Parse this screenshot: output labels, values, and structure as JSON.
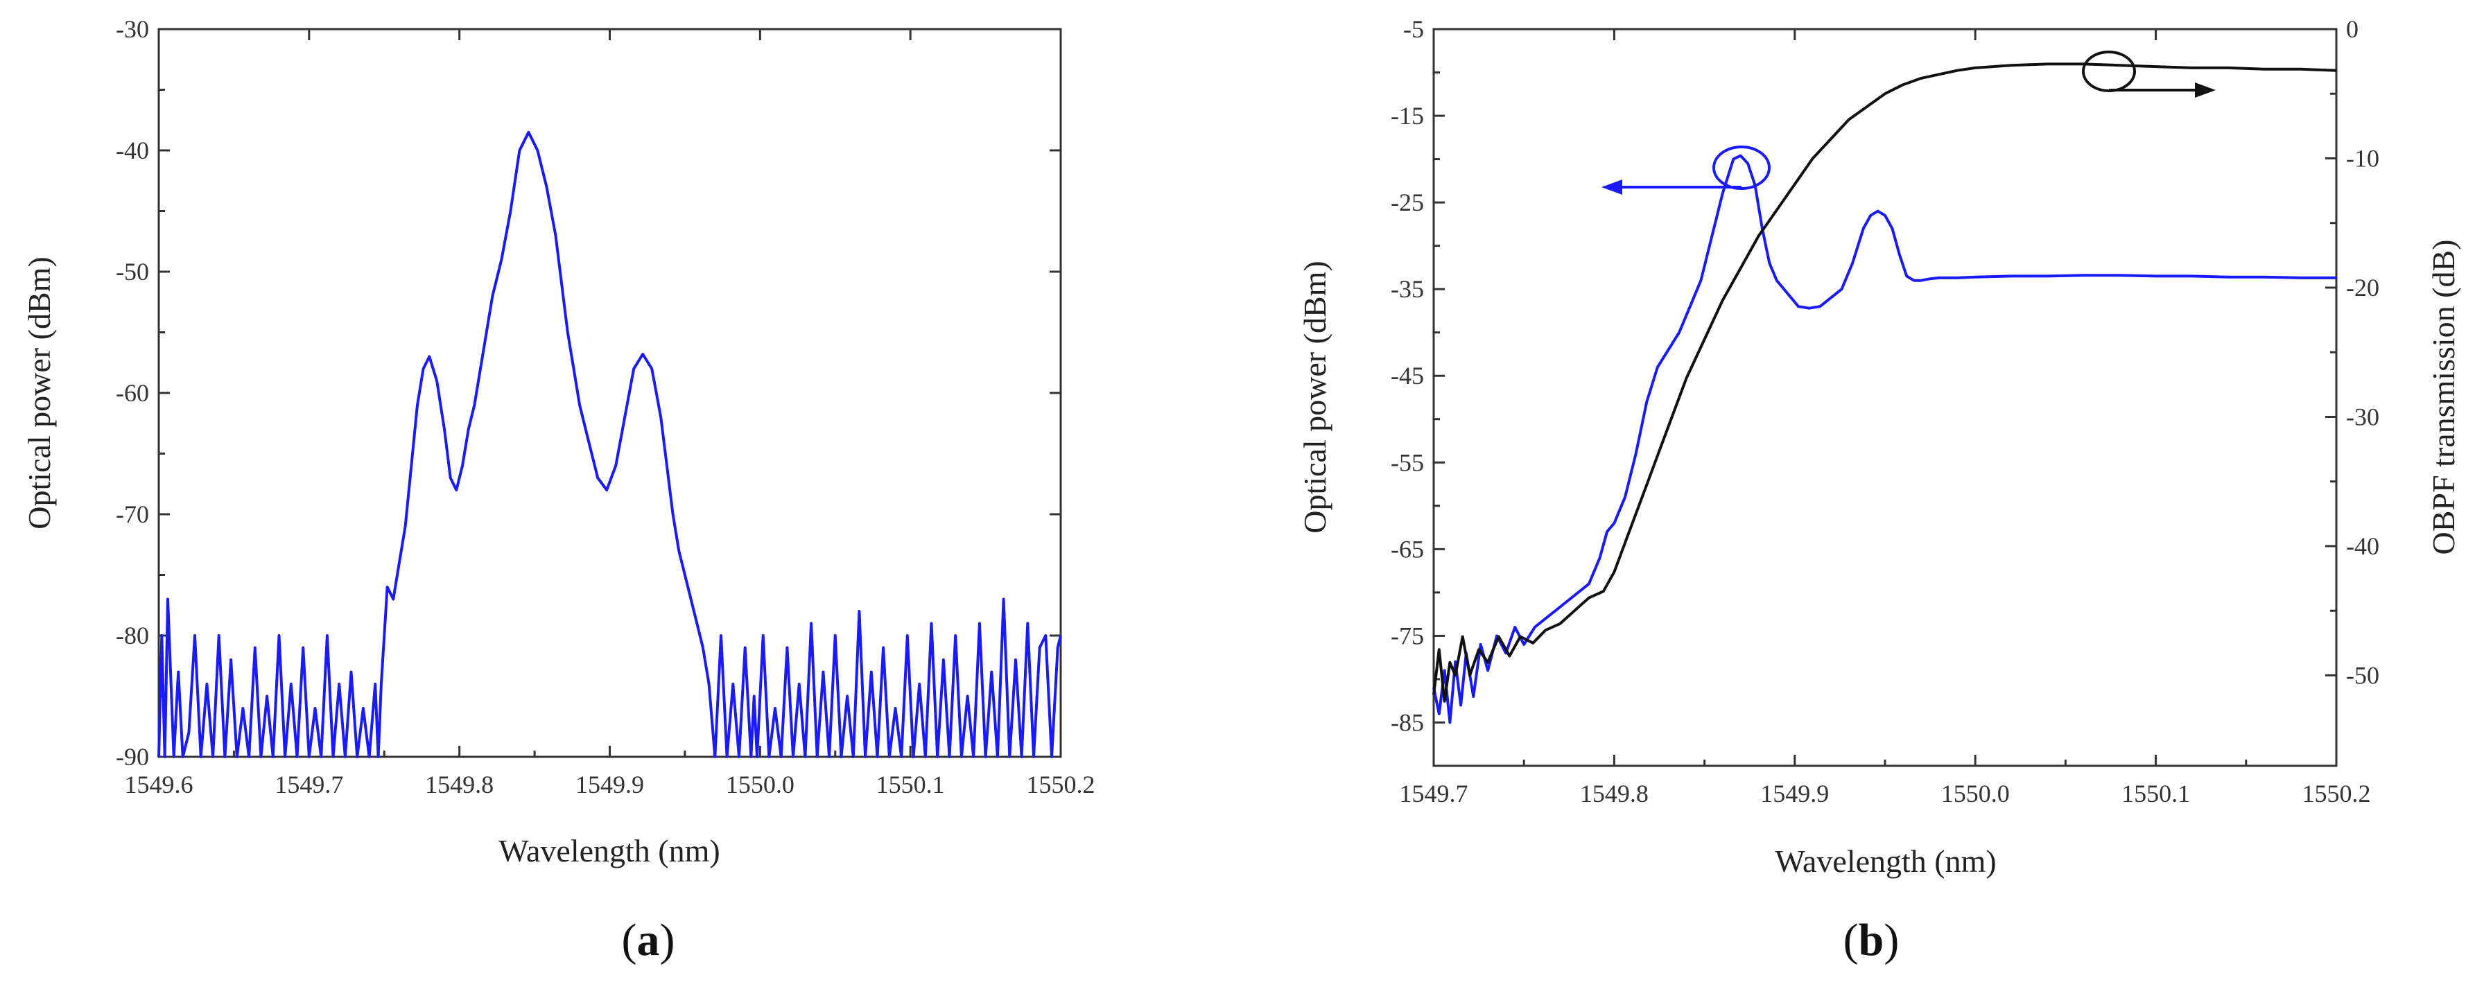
{
  "colors": {
    "blue_trace": "#1a1aff",
    "black_trace": "#111111",
    "axis": "#333333"
  },
  "panels": [
    {
      "label_open": "(",
      "label_letter": "a",
      "label_close": ")"
    },
    {
      "label_open": "(",
      "label_letter": "b",
      "label_close": ")"
    }
  ],
  "chart_data": [
    {
      "type": "line",
      "title": "",
      "xlabel": "Wavelength (nm)",
      "ylabel": "Optical power (dBm)",
      "xlim": [
        1549.6,
        1550.2
      ],
      "ylim": [
        -90,
        -30
      ],
      "x_ticks": [
        1549.6,
        1549.7,
        1549.8,
        1549.9,
        1550.0,
        1550.1,
        1550.2
      ],
      "x_tick_labels": [
        "1549.6",
        "1549.7",
        "1549.8",
        "1549.9",
        "1550.0",
        "1550.1",
        "1550.2"
      ],
      "y_ticks": [
        -90,
        -80,
        -70,
        -60,
        -50,
        -40,
        -30
      ],
      "y_tick_labels": [
        "-90",
        "-80",
        "-70",
        "-60",
        "-50",
        "-40",
        "-30"
      ],
      "grid": false,
      "series": [
        {
          "color": "#1a1aff",
          "x": [
            1549.6,
            1549.602,
            1549.604,
            1549.606,
            1549.61,
            1549.613,
            1549.616,
            1549.62,
            1549.624,
            1549.628,
            1549.632,
            1549.636,
            1549.64,
            1549.644,
            1549.648,
            1549.652,
            1549.656,
            1549.66,
            1549.664,
            1549.668,
            1549.672,
            1549.676,
            1549.68,
            1549.684,
            1549.688,
            1549.692,
            1549.696,
            1549.7,
            1549.704,
            1549.708,
            1549.712,
            1549.716,
            1549.72,
            1549.724,
            1549.728,
            1549.732,
            1549.736,
            1549.74,
            1549.744,
            1549.746,
            1549.748,
            1549.752,
            1549.756,
            1549.76,
            1549.764,
            1549.768,
            1549.772,
            1549.776,
            1549.78,
            1549.785,
            1549.79,
            1549.794,
            1549.798,
            1549.802,
            1549.806,
            1549.81,
            1549.814,
            1549.818,
            1549.822,
            1549.828,
            1549.834,
            1549.84,
            1549.846,
            1549.852,
            1549.858,
            1549.864,
            1549.868,
            1549.872,
            1549.876,
            1549.88,
            1549.886,
            1549.892,
            1549.898,
            1549.904,
            1549.91,
            1549.916,
            1549.922,
            1549.928,
            1549.934,
            1549.938,
            1549.942,
            1549.946,
            1549.95,
            1549.954,
            1549.958,
            1549.962,
            1549.966,
            1549.97,
            1549.974,
            1549.978,
            1549.982,
            1549.986,
            1549.99,
            1549.994,
            1549.996,
            1549.998,
            1550.002,
            1550.006,
            1550.01,
            1550.014,
            1550.018,
            1550.022,
            1550.026,
            1550.03,
            1550.034,
            1550.038,
            1550.042,
            1550.046,
            1550.05,
            1550.054,
            1550.058,
            1550.062,
            1550.066,
            1550.07,
            1550.074,
            1550.078,
            1550.082,
            1550.086,
            1550.09,
            1550.094,
            1550.098,
            1550.102,
            1550.106,
            1550.11,
            1550.114,
            1550.118,
            1550.122,
            1550.126,
            1550.13,
            1550.134,
            1550.138,
            1550.142,
            1550.146,
            1550.15,
            1550.154,
            1550.158,
            1550.162,
            1550.166,
            1550.17,
            1550.174,
            1550.178,
            1550.182,
            1550.186,
            1550.19,
            1550.194,
            1550.198,
            1550.2
          ],
          "y": [
            -90,
            -80,
            -90,
            -77,
            -90,
            -83,
            -90,
            -88,
            -80,
            -90,
            -84,
            -90,
            -80,
            -90,
            -82,
            -90,
            -86,
            -90,
            -81,
            -90,
            -85,
            -90,
            -80,
            -90,
            -84,
            -90,
            -81,
            -90,
            -86,
            -90,
            -80,
            -90,
            -84,
            -90,
            -83,
            -90,
            -86,
            -90,
            -84,
            -90,
            -84,
            -76,
            -77,
            -74,
            -71,
            -66,
            -61,
            -58,
            -57,
            -59,
            -63,
            -67,
            -68,
            -66,
            -63,
            -61,
            -58,
            -55,
            -52,
            -49,
            -45,
            -40,
            -38.5,
            -40,
            -43,
            -47,
            -51,
            -55,
            -58,
            -61,
            -64,
            -67,
            -68,
            -66,
            -62,
            -58,
            -56.8,
            -58,
            -62,
            -66,
            -70,
            -73,
            -75,
            -77,
            -79,
            -81,
            -84,
            -90,
            -80,
            -90,
            -84,
            -90,
            -81,
            -90,
            -85,
            -90,
            -80,
            -90,
            -86,
            -90,
            -81,
            -90,
            -84,
            -90,
            -79,
            -90,
            -83,
            -90,
            -80,
            -90,
            -85,
            -90,
            -78,
            -90,
            -83,
            -90,
            -81,
            -90,
            -86,
            -90,
            -80,
            -90,
            -84,
            -90,
            -79,
            -90,
            -82,
            -90,
            -80,
            -90,
            -85,
            -90,
            -79,
            -90,
            -83,
            -90,
            -77,
            -90,
            -82,
            -90,
            -79,
            -90,
            -81,
            -80,
            -90,
            -81,
            -80
          ]
        }
      ]
    },
    {
      "type": "line",
      "title": "",
      "xlabel": "Wavelength (nm)",
      "ylabel": "Optical power (dBm)",
      "y2label": "OBPF transmission (dB)",
      "xlim": [
        1549.7,
        1550.2
      ],
      "ylim": [
        -90,
        -5
      ],
      "y2lim": [
        -57,
        0
      ],
      "x_ticks": [
        1549.7,
        1549.8,
        1549.9,
        1550.0,
        1550.1,
        1550.2
      ],
      "x_tick_labels": [
        "1549.7",
        "1549.8",
        "1549.9",
        "1550.0",
        "1550.1",
        "1550.2"
      ],
      "y_ticks": [
        -85,
        -75,
        -65,
        -55,
        -45,
        -35,
        -25,
        -15,
        -5
      ],
      "y_tick_labels": [
        "-85",
        "-75",
        "-65",
        "-55",
        "-45",
        "-35",
        "-25",
        "-15",
        "-5"
      ],
      "y2_ticks": [
        -50,
        -40,
        -30,
        -20,
        -10,
        0
      ],
      "y2_tick_labels": [
        "-50",
        "-40",
        "-30",
        "-20",
        "-10",
        "0"
      ],
      "grid": false,
      "series": [
        {
          "color": "#1a1aff",
          "axis": "left",
          "x": [
            1549.7,
            1549.703,
            1549.706,
            1549.709,
            1549.712,
            1549.715,
            1549.718,
            1549.722,
            1549.726,
            1549.73,
            1549.735,
            1549.74,
            1549.745,
            1549.75,
            1549.756,
            1549.762,
            1549.768,
            1549.774,
            1549.78,
            1549.786,
            1549.792,
            1549.796,
            1549.8,
            1549.806,
            1549.812,
            1549.818,
            1549.824,
            1549.83,
            1549.836,
            1549.842,
            1549.848,
            1549.854,
            1549.86,
            1549.866,
            1549.87,
            1549.874,
            1549.878,
            1549.882,
            1549.886,
            1549.89,
            1549.896,
            1549.902,
            1549.908,
            1549.914,
            1549.92,
            1549.926,
            1549.932,
            1549.938,
            1549.942,
            1549.946,
            1549.95,
            1549.954,
            1549.958,
            1549.962,
            1549.966,
            1549.97,
            1549.975,
            1549.98,
            1549.99,
            1550.0,
            1550.02,
            1550.04,
            1550.06,
            1550.08,
            1550.1,
            1550.12,
            1550.14,
            1550.16,
            1550.18,
            1550.2
          ],
          "y": [
            -81,
            -84,
            -79,
            -85,
            -78,
            -83,
            -77,
            -82,
            -76,
            -79,
            -75,
            -77,
            -74,
            -76,
            -74,
            -73,
            -72,
            -71,
            -70,
            -69,
            -66,
            -63,
            -62,
            -59,
            -54,
            -48,
            -44,
            -42,
            -40,
            -37,
            -34,
            -29,
            -24,
            -20,
            -19.6,
            -20.5,
            -23,
            -28,
            -32,
            -34,
            -35.5,
            -37,
            -37.2,
            -37,
            -36,
            -35,
            -32,
            -28,
            -26.5,
            -26,
            -26.5,
            -28,
            -31,
            -33.5,
            -34,
            -34,
            -33.8,
            -33.7,
            -33.7,
            -33.6,
            -33.5,
            -33.5,
            -33.4,
            -33.4,
            -33.5,
            -33.5,
            -33.6,
            -33.6,
            -33.7,
            -33.7
          ]
        },
        {
          "color": "#111111",
          "axis": "right",
          "x": [
            1549.7,
            1549.703,
            1549.706,
            1549.709,
            1549.712,
            1549.716,
            1549.72,
            1549.725,
            1549.73,
            1549.736,
            1549.742,
            1549.748,
            1549.755,
            1549.762,
            1549.77,
            1549.778,
            1549.786,
            1549.794,
            1549.8,
            1549.808,
            1549.816,
            1549.824,
            1549.832,
            1549.84,
            1549.85,
            1549.86,
            1549.87,
            1549.88,
            1549.89,
            1549.9,
            1549.91,
            1549.92,
            1549.93,
            1549.94,
            1549.95,
            1549.96,
            1549.97,
            1549.98,
            1549.99,
            1550.0,
            1550.02,
            1550.04,
            1550.06,
            1550.08,
            1550.1,
            1550.12,
            1550.14,
            1550.16,
            1550.18,
            1550.2
          ],
          "y": [
            -51.5,
            -48,
            -52,
            -49,
            -50,
            -47,
            -50,
            -48,
            -49,
            -47,
            -48.5,
            -47,
            -47.5,
            -46.5,
            -46,
            -45,
            -44,
            -43.5,
            -42,
            -39,
            -36,
            -33,
            -30,
            -27,
            -24,
            -21,
            -18.5,
            -16,
            -14,
            -12,
            -10,
            -8.5,
            -7,
            -6,
            -5,
            -4.3,
            -3.8,
            -3.5,
            -3.2,
            -3.0,
            -2.8,
            -2.7,
            -2.7,
            -2.8,
            -2.9,
            -3.0,
            -3.0,
            -3.1,
            -3.1,
            -3.2
          ]
        }
      ]
    }
  ]
}
